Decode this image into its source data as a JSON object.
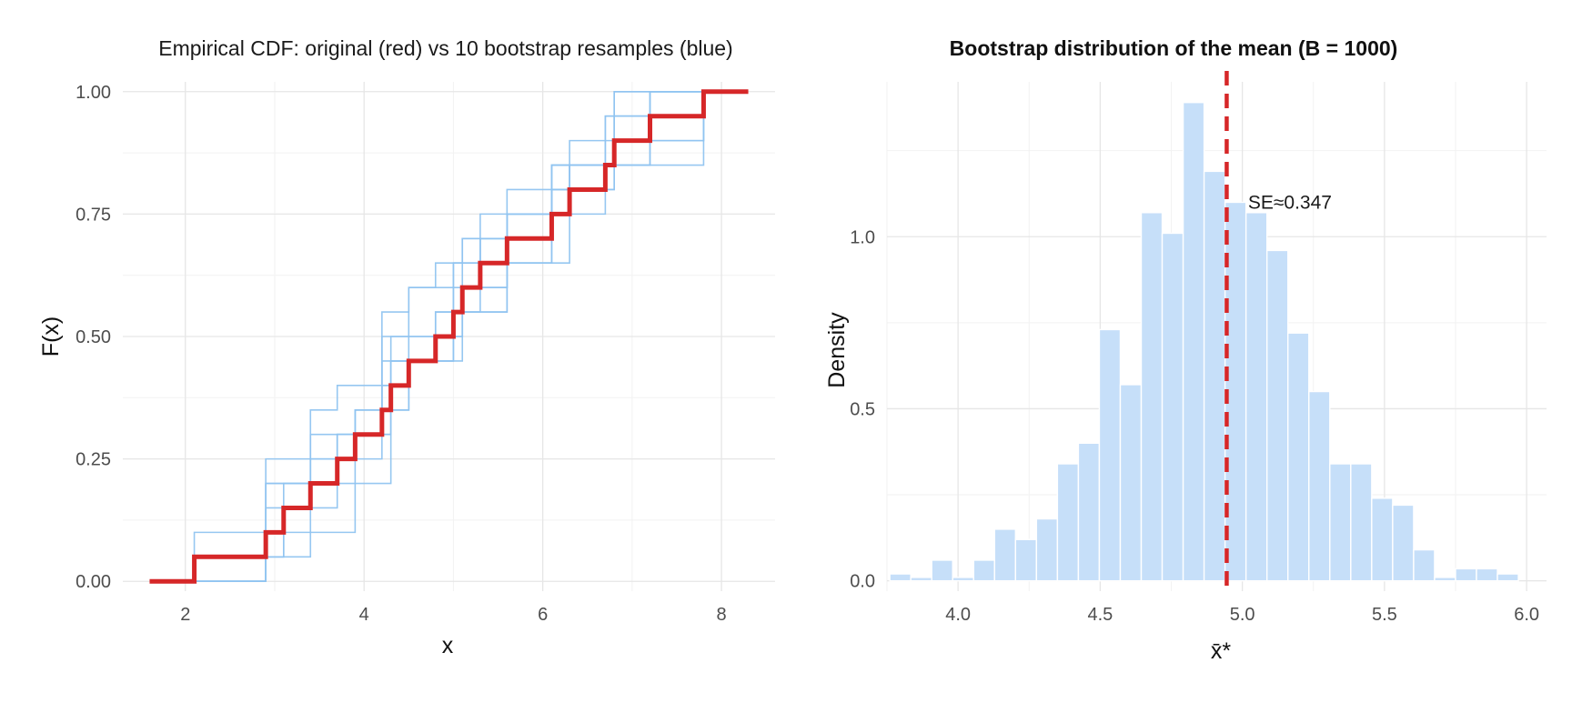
{
  "chart_data": [
    {
      "type": "line",
      "title": "Empirical CDF: original (red) vs 10 bootstrap resamples (blue)",
      "xlabel": "x",
      "ylabel": "F(x)",
      "xlim": [
        1.3,
        8.6
      ],
      "ylim": [
        -0.02,
        1.02
      ],
      "xticks": [
        2,
        4,
        6,
        8
      ],
      "xtick_labels": [
        "2",
        "4",
        "6",
        "8"
      ],
      "yticks": [
        0,
        0.25,
        0.5,
        0.75,
        1.0
      ],
      "ytick_labels": [
        "0.00",
        "0.25",
        "0.50",
        "0.75",
        "1.00"
      ],
      "grid": true,
      "colors": {
        "original": "#d62728",
        "bootstrap": "#90c4f0"
      },
      "original_ecdf": {
        "x_start": 1.6,
        "x_end": 8.3,
        "jumps": [
          2.1,
          2.9,
          3.1,
          3.4,
          3.7,
          3.9,
          4.2,
          4.3,
          4.5,
          4.8,
          5.0,
          5.1,
          5.3,
          5.6,
          6.1,
          6.3,
          6.7,
          6.8,
          7.2,
          7.8
        ],
        "y_values": [
          0.05,
          0.1,
          0.15,
          0.2,
          0.25,
          0.3,
          0.35,
          0.4,
          0.45,
          0.5,
          0.55,
          0.6,
          0.65,
          0.7,
          0.75,
          0.8,
          0.85,
          0.9,
          0.95,
          1.0
        ]
      },
      "bootstrap_ecdfs": [
        {
          "x": [
            2.1,
            2.9,
            3.4,
            3.7,
            4.2,
            4.5,
            5.0,
            5.3,
            5.6,
            6.1,
            6.3,
            6.8,
            7.8
          ],
          "y": [
            0.05,
            0.25,
            0.35,
            0.4,
            0.55,
            0.6,
            0.65,
            0.7,
            0.75,
            0.8,
            0.85,
            0.9,
            1.0
          ]
        },
        {
          "x": [
            2.9,
            3.1,
            3.7,
            4.2,
            4.3,
            4.8,
            5.0,
            5.3,
            6.1,
            6.7,
            7.2,
            7.8
          ],
          "y": [
            0.1,
            0.2,
            0.3,
            0.4,
            0.5,
            0.55,
            0.65,
            0.7,
            0.8,
            0.85,
            0.95,
            1.0
          ]
        },
        {
          "x": [
            2.1,
            3.1,
            3.4,
            3.9,
            4.2,
            4.5,
            4.8,
            5.1,
            5.6,
            6.1,
            6.8,
            7.2
          ],
          "y": [
            0.1,
            0.15,
            0.3,
            0.35,
            0.5,
            0.6,
            0.65,
            0.7,
            0.8,
            0.85,
            0.95,
            1.0
          ]
        },
        {
          "x": [
            2.9,
            3.1,
            3.4,
            3.9,
            4.3,
            4.5,
            5.0,
            5.1,
            5.6,
            6.1,
            6.3,
            6.8
          ],
          "y": [
            0.05,
            0.15,
            0.2,
            0.3,
            0.35,
            0.5,
            0.55,
            0.6,
            0.75,
            0.8,
            0.9,
            1.0
          ]
        },
        {
          "x": [
            2.1,
            2.9,
            3.7,
            4.2,
            4.5,
            5.0,
            5.1,
            5.6,
            6.3,
            6.8,
            7.8
          ],
          "y": [
            0.05,
            0.2,
            0.25,
            0.35,
            0.45,
            0.5,
            0.6,
            0.75,
            0.8,
            0.85,
            1.0
          ]
        },
        {
          "x": [
            2.9,
            3.4,
            3.7,
            4.2,
            4.8,
            5.0,
            5.3,
            5.6,
            6.1,
            6.7,
            7.2
          ],
          "y": [
            0.15,
            0.2,
            0.3,
            0.45,
            0.5,
            0.6,
            0.7,
            0.75,
            0.85,
            0.95,
            1.0
          ]
        },
        {
          "x": [
            2.9,
            3.1,
            3.4,
            3.9,
            4.3,
            4.8,
            5.1,
            5.6,
            6.1,
            6.8,
            7.8
          ],
          "y": [
            0.05,
            0.1,
            0.25,
            0.35,
            0.45,
            0.5,
            0.55,
            0.65,
            0.85,
            0.9,
            1.0
          ]
        },
        {
          "x": [
            2.1,
            2.9,
            3.4,
            3.7,
            4.3,
            4.8,
            5.1,
            5.3,
            6.3,
            6.7,
            7.2
          ],
          "y": [
            0.05,
            0.2,
            0.25,
            0.3,
            0.45,
            0.55,
            0.7,
            0.75,
            0.85,
            0.95,
            1.0
          ]
        },
        {
          "x": [
            2.9,
            3.1,
            3.7,
            3.9,
            4.2,
            4.5,
            5.0,
            5.3,
            5.6,
            6.3,
            6.8
          ],
          "y": [
            0.1,
            0.15,
            0.25,
            0.35,
            0.4,
            0.45,
            0.55,
            0.6,
            0.65,
            0.8,
            1.0
          ]
        },
        {
          "x": [
            2.9,
            3.4,
            3.9,
            4.3,
            4.5,
            5.1,
            5.6,
            6.1,
            6.7,
            7.2,
            7.8
          ],
          "y": [
            0.05,
            0.1,
            0.2,
            0.35,
            0.45,
            0.55,
            0.65,
            0.75,
            0.85,
            0.95,
            1.0
          ]
        }
      ]
    },
    {
      "type": "histogram",
      "title": "Bootstrap distribution of the mean (B = 1000)",
      "xlabel": "x̄*",
      "ylabel": "Density",
      "xlim": [
        3.75,
        6.07
      ],
      "ylim": [
        -0.03,
        1.45
      ],
      "xticks": [
        4.0,
        4.5,
        5.0,
        5.5,
        6.0
      ],
      "xtick_labels": [
        "4.0",
        "4.5",
        "5.0",
        "5.5",
        "6.0"
      ],
      "yticks": [
        0,
        0.5,
        1.0
      ],
      "ytick_labels": [
        "0.0",
        "0.5",
        "1.0"
      ],
      "grid": true,
      "bar_color": "#c6dff9",
      "bin_width": 0.0737,
      "bin_start": 3.76,
      "densities": [
        0.02,
        0.01,
        0.06,
        0.01,
        0.06,
        0.15,
        0.12,
        0.18,
        0.34,
        0.4,
        0.73,
        0.57,
        1.07,
        1.01,
        1.39,
        1.19,
        1.1,
        1.07,
        0.96,
        0.72,
        0.55,
        0.34,
        0.34,
        0.24,
        0.22,
        0.09,
        0.01,
        0.035,
        0.035,
        0.02
      ],
      "mean_line": {
        "x": 4.945,
        "color": "#d62728",
        "style": "dashed"
      },
      "annotation": {
        "text": "SE≈0.347",
        "x": 5.02,
        "y": 1.1
      }
    }
  ]
}
